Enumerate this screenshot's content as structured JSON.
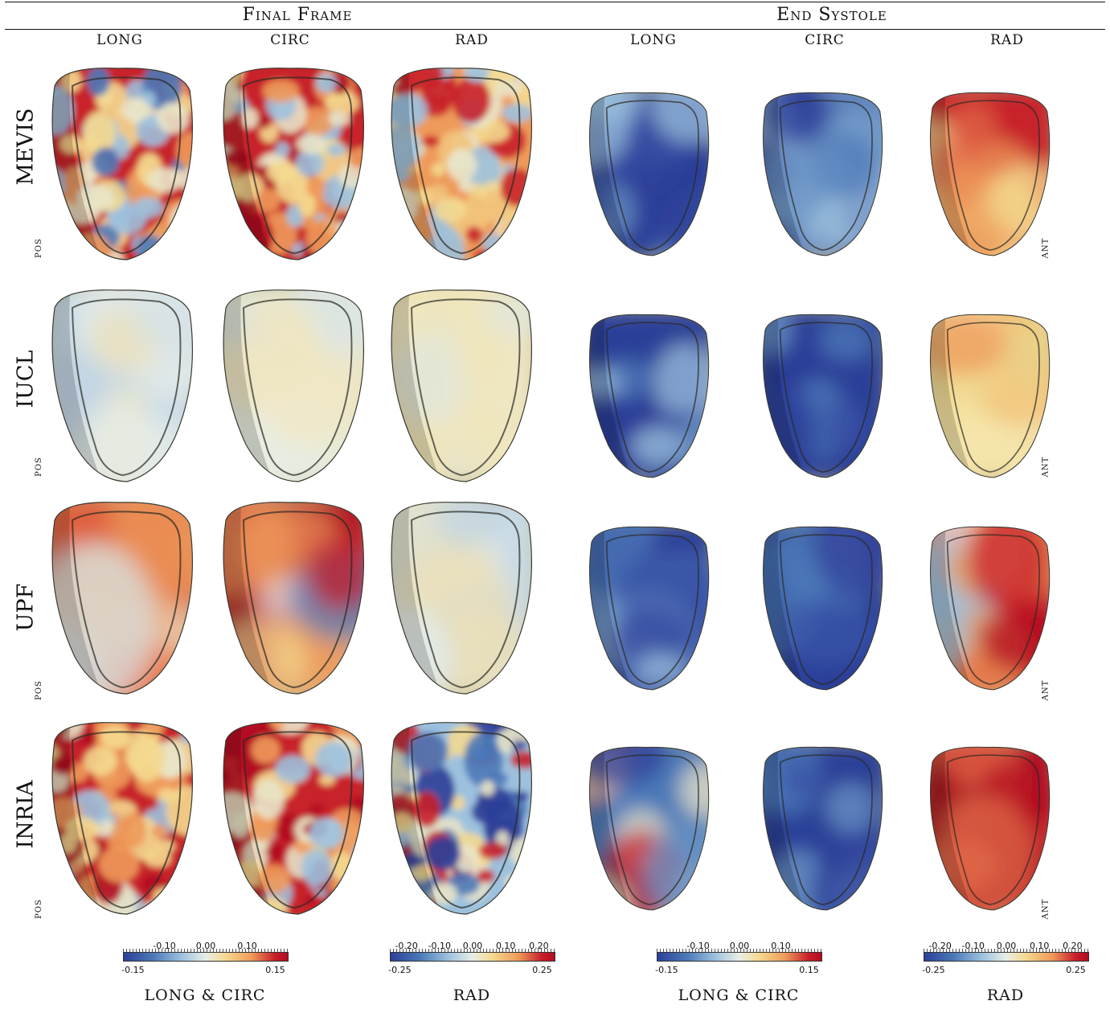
{
  "groups": {
    "final_frame": "Final Frame",
    "end_systole": "End Systole"
  },
  "columns": [
    "LONG",
    "CIRC",
    "RAD",
    "LONG",
    "CIRC",
    "RAD"
  ],
  "rows": [
    {
      "label": "MEVIS",
      "left_orient": "POS",
      "right_orient": "ANT",
      "cells": [
        {
          "field": "noisy-mixed"
        },
        {
          "field": "noisy-red"
        },
        {
          "field": "noisy-warm"
        },
        {
          "field": "blue"
        },
        {
          "field": "blue"
        },
        {
          "field": "red"
        }
      ]
    },
    {
      "label": "IUCL",
      "left_orient": "POS",
      "right_orient": "ANT",
      "cells": [
        {
          "field": "pale-blue"
        },
        {
          "field": "pale"
        },
        {
          "field": "pale-yellow"
        },
        {
          "field": "blue"
        },
        {
          "field": "blue"
        },
        {
          "field": "yellow"
        }
      ]
    },
    {
      "label": "UPF",
      "left_orient": "POS",
      "right_orient": "ANT",
      "cells": [
        {
          "field": "orange"
        },
        {
          "field": "red-blue"
        },
        {
          "field": "pale-blue"
        },
        {
          "field": "blue"
        },
        {
          "field": "deep-blue"
        },
        {
          "field": "red-pale"
        }
      ]
    },
    {
      "label": "INRIA",
      "left_orient": "POS",
      "right_orient": "ANT",
      "cells": [
        {
          "field": "noisy-red"
        },
        {
          "field": "noisy-red"
        },
        {
          "field": "noisy-blue"
        },
        {
          "field": "blue-band"
        },
        {
          "field": "blue"
        },
        {
          "field": "deep-red"
        }
      ]
    }
  ],
  "colorbars": [
    {
      "caption": "LONG & CIRC",
      "top": [
        "-0.10",
        "0.00",
        "0.10"
      ],
      "bottom": [
        "-0.15",
        "0.15"
      ]
    },
    {
      "caption": "RAD",
      "top": [
        "-0.20",
        "-0.10",
        "0.00",
        "0.10",
        "0.20"
      ],
      "bottom": [
        "-0.25",
        "0.25"
      ]
    },
    {
      "caption": "LONG & CIRC",
      "top": [
        "-0.10",
        "0.00",
        "0.10"
      ],
      "bottom": [
        "-0.15",
        "0.15"
      ]
    },
    {
      "caption": "RAD",
      "top": [
        "-0.20",
        "-0.10",
        "0.00",
        "0.10",
        "0.20"
      ],
      "bottom": [
        "-0.25",
        "0.25"
      ]
    }
  ],
  "colors": {
    "neg": "#2c3f98",
    "neutral": "#e8eee6",
    "pos": "#b10b20",
    "shell": "#b9b08a"
  }
}
